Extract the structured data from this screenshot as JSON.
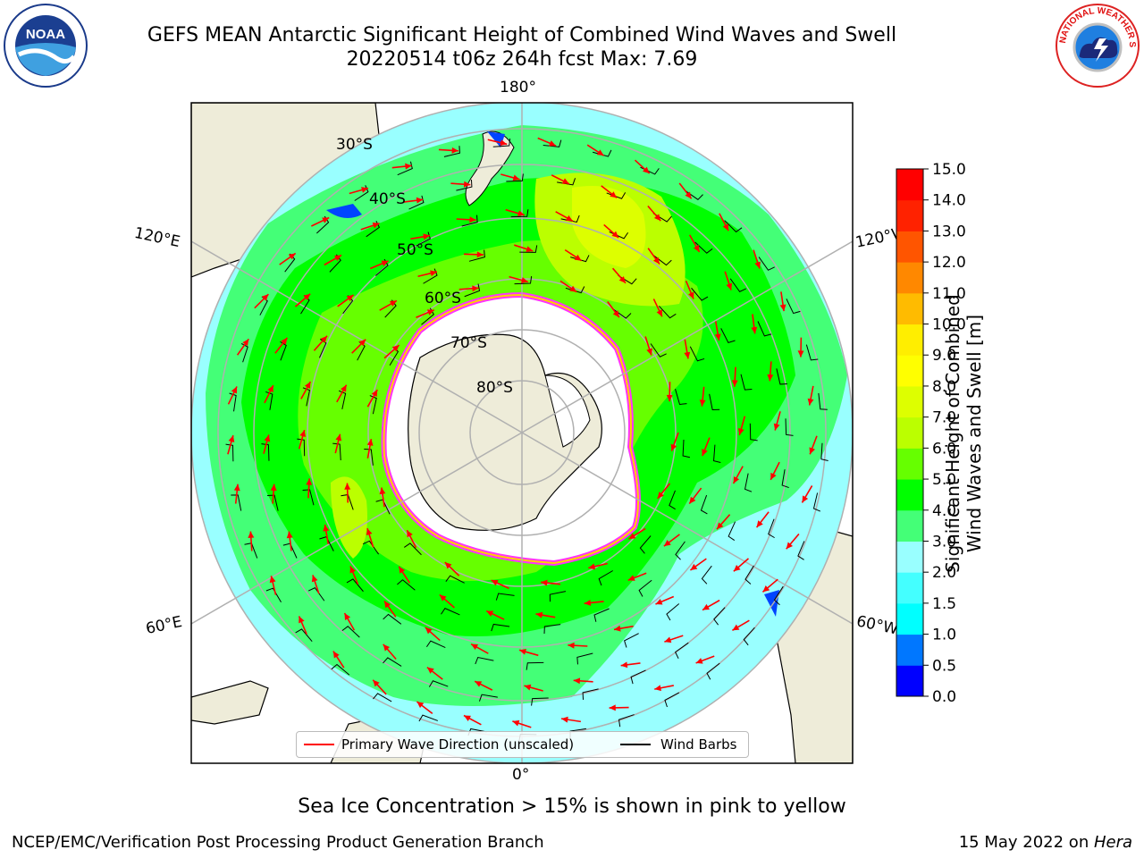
{
  "header": {
    "title_line1": "GEFS MEAN Antarctic Significant Height of Combined Wind Waves and Swell",
    "title_line2": "20220514 t06z 264h fcst   Max: 7.69"
  },
  "logos": {
    "noaa_text": "NOAA",
    "noaa_ring_text": "NATIONAL OCEANIC AND ATMOSPHERIC ADMINISTRATION · U.S. DEPARTMENT OF COMMERCE",
    "nws_ring_text": "NATIONAL WEATHER SERVICE"
  },
  "map": {
    "longitude_labels": [
      "180°",
      "120°E",
      "120°W",
      "60°E",
      "60°W",
      "0°"
    ],
    "latitude_labels": [
      "30°S",
      "40°S",
      "50°S",
      "60°S",
      "70°S",
      "80°S"
    ],
    "colors": {
      "land": "#eeecd9",
      "ice_shelf": "#ffffff",
      "ice_edge": "#ff33ff",
      "wave_arrow": "#ff0000",
      "wind_barb": "#000000",
      "grid": "#b0b0b0"
    }
  },
  "legend": {
    "wave_direction_label": "Primary Wave Direction (unscaled)",
    "wind_barbs_label": "Wind Barbs"
  },
  "colorbar": {
    "title_line1": "Significant Height of Combined",
    "title_line2": "Wind Waves and Swell [m]",
    "ticks": [
      "0.0",
      "0.5",
      "1.0",
      "1.5",
      "2.0",
      "3.0",
      "4.0",
      "5.0",
      "6.0",
      "7.0",
      "8.0",
      "9.0",
      "10.0",
      "11.0",
      "12.0",
      "13.0",
      "14.0",
      "15.0"
    ],
    "colors": [
      "#0000ff",
      "#0077ff",
      "#00ffff",
      "#44ffff",
      "#99ffff",
      "#44ff77",
      "#00ff00",
      "#66ff00",
      "#bbff00",
      "#ddff00",
      "#ffff00",
      "#ffee00",
      "#ffbb00",
      "#ff8800",
      "#ff5500",
      "#ff2200",
      "#ff0000"
    ]
  },
  "footer": {
    "subtitle": "Sea Ice Concentration > 15% is shown in pink to yellow",
    "left": "NCEP/EMC/Verification Post Processing Product Generation Branch",
    "right_date": "15 May 2022 on ",
    "right_host": "Hera"
  }
}
